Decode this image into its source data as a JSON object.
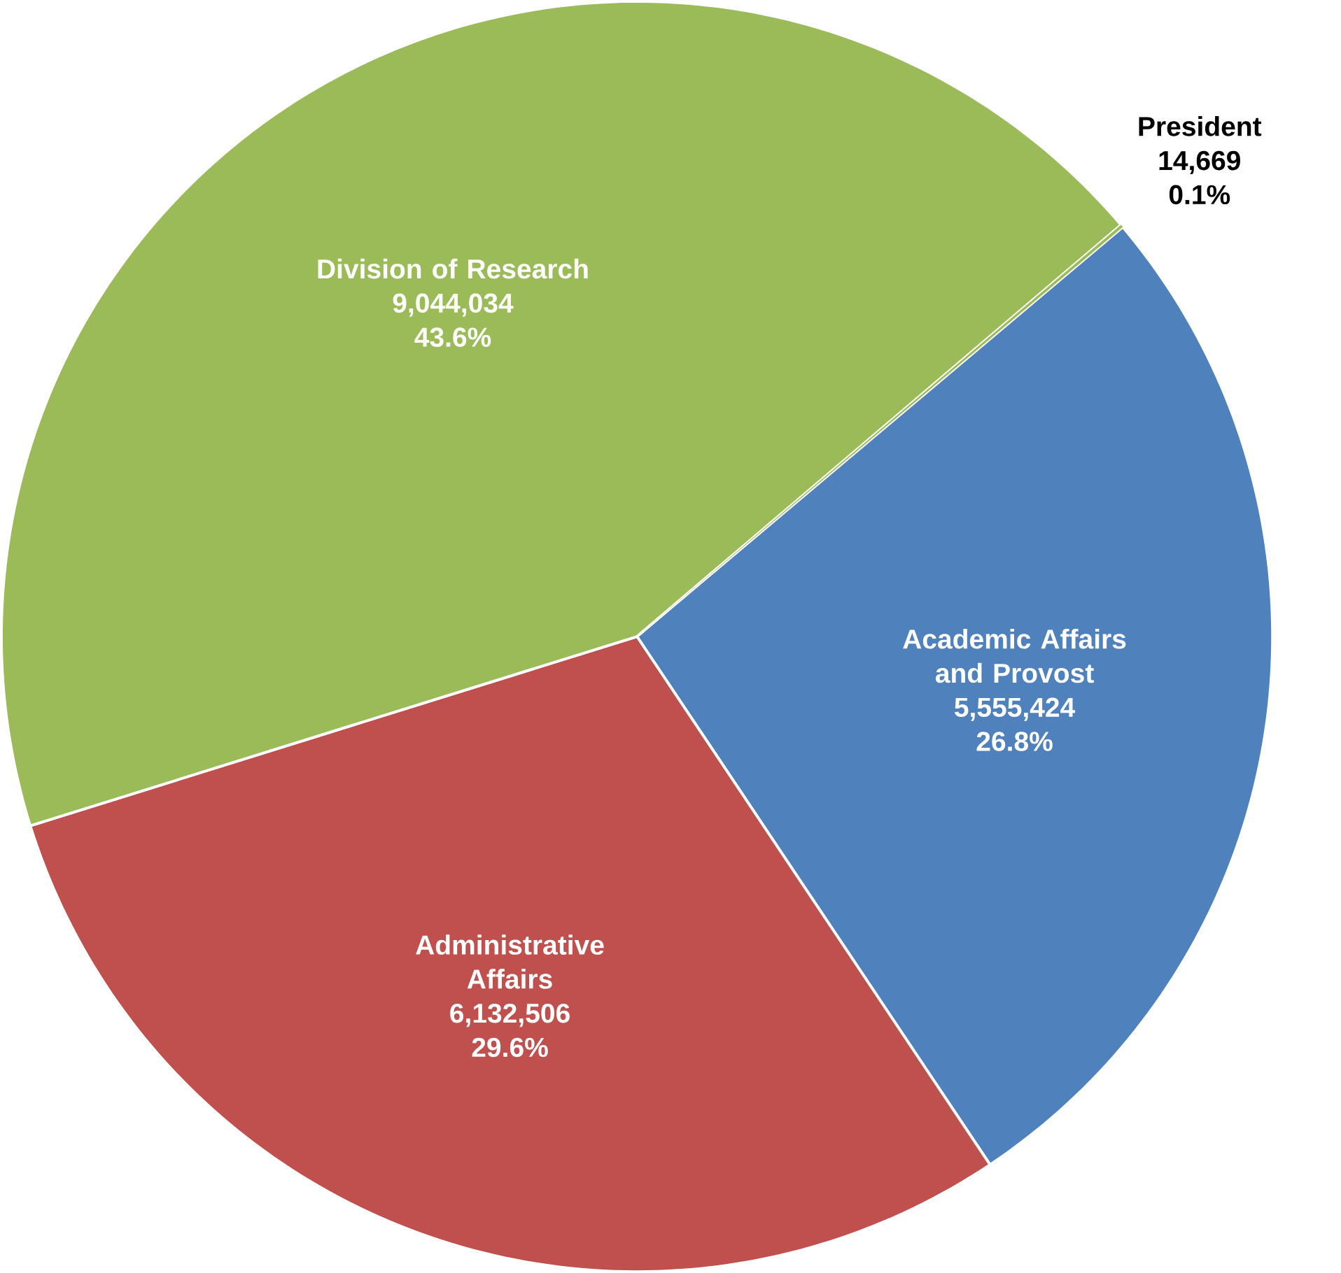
{
  "chart_data": {
    "type": "pie",
    "categories": [
      "President",
      "Academic Affairs and Provost",
      "Administrative Affairs",
      "Division of Research"
    ],
    "values": [
      14669,
      5555424,
      6132506,
      9044034
    ],
    "colors": [
      "#9bbb59",
      "#4f81bd",
      "#c0504d",
      "#9bbb59"
    ],
    "value_labels": [
      "14,669",
      "5,555,424",
      "6,132,506",
      "9,044,034"
    ],
    "annotations": [
      "0.1%",
      "26.8%",
      "29.6%",
      "43.6%"
    ]
  }
}
